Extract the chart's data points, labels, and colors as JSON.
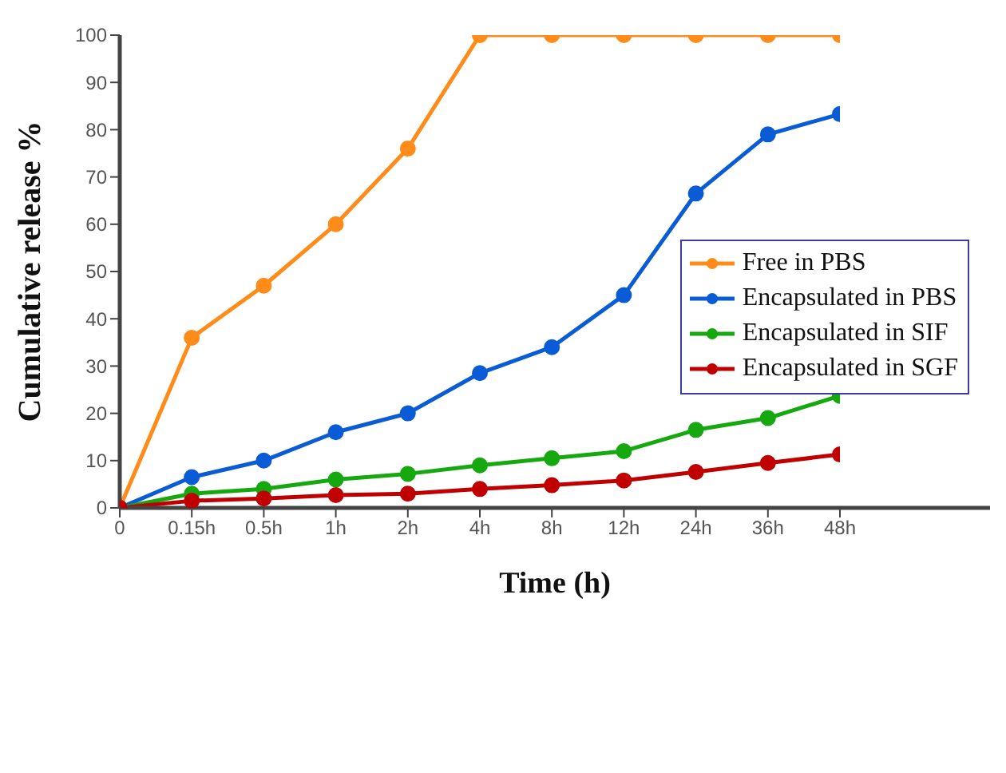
{
  "chart_data": {
    "type": "line",
    "xlabel": "Time (h)",
    "ylabel": "Cumulative release %",
    "categories": [
      "0",
      "0.15h",
      "0.5h",
      "1h",
      "2h",
      "4h",
      "8h",
      "12h",
      "24h",
      "36h",
      "48h"
    ],
    "ylim": [
      0,
      100
    ],
    "yticks": [
      0,
      10,
      20,
      30,
      40,
      50,
      60,
      70,
      80,
      90,
      100
    ],
    "grid": false,
    "legend": "right",
    "marker": "circle",
    "line_style": "solid",
    "series": [
      {
        "name": "Free in PBS",
        "color": "#ff8c1a",
        "values": [
          0,
          36,
          47,
          60,
          76,
          100,
          100,
          100,
          100,
          100,
          100
        ]
      },
      {
        "name": "Encapsulated in PBS",
        "color": "#0a5bd6",
        "values": [
          0,
          6.5,
          10,
          16,
          20,
          28.5,
          34,
          45,
          66.5,
          79,
          83.3
        ]
      },
      {
        "name": "Encapsulated in SIF",
        "color": "#16a80f",
        "values": [
          0,
          3,
          4,
          6,
          7.2,
          9,
          10.5,
          12,
          16.5,
          19,
          23.7
        ]
      },
      {
        "name": "Encapsulated in SGF",
        "color": "#c00000",
        "values": [
          0,
          1.5,
          2,
          2.7,
          3,
          4,
          4.8,
          5.8,
          7.6,
          9.5,
          11.3
        ]
      }
    ]
  }
}
